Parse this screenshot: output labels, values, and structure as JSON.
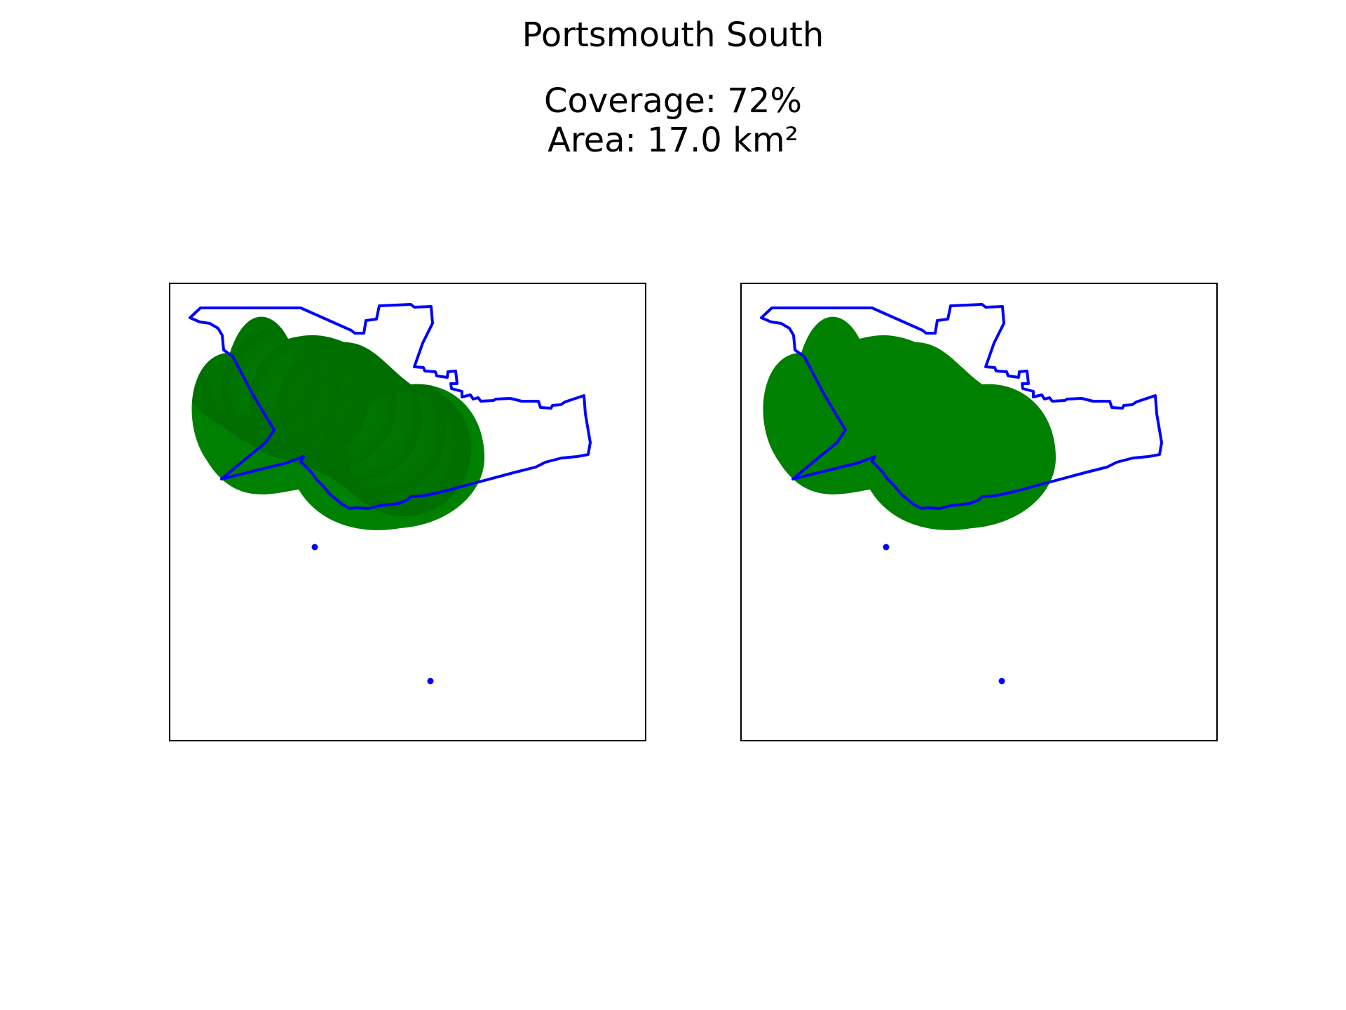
{
  "figure": {
    "title": "Portsmouth South",
    "coverage_label": "Coverage: 72%",
    "area_label": "Area: 17.0 km²"
  },
  "map_layers": {
    "boundary": {
      "feature": "constituency boundary",
      "stroke_color": "#0000ff"
    },
    "coverage": {
      "feature": "coverage area",
      "fill_color": "#008000",
      "fraction_covered": 0.72,
      "area_km2": 17.0
    },
    "points": {
      "feature": "outlying points",
      "color": "#0000ff",
      "count": 2
    }
  },
  "panels": [
    {
      "coverage_style": "overlapping-circles"
    },
    {
      "coverage_style": "merged-solid"
    }
  ]
}
